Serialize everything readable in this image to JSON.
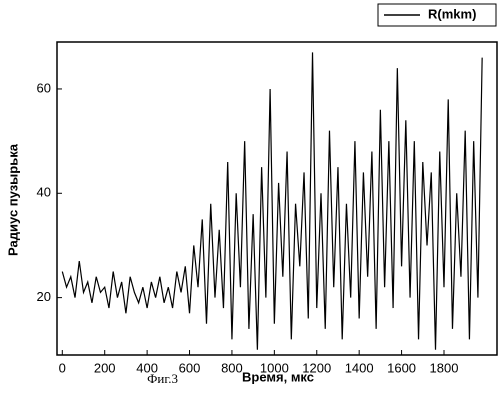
{
  "chart_data": {
    "type": "line",
    "caption": "Фиг.3",
    "xlabel": "Время, мкс",
    "ylabel": "Радиус пузырька",
    "x": [
      0,
      20,
      40,
      60,
      80,
      100,
      120,
      140,
      160,
      180,
      200,
      220,
      240,
      260,
      280,
      300,
      320,
      340,
      360,
      380,
      400,
      420,
      440,
      460,
      480,
      500,
      520,
      540,
      560,
      580,
      600,
      620,
      640,
      660,
      680,
      700,
      720,
      740,
      760,
      780,
      800,
      820,
      840,
      860,
      880,
      900,
      920,
      940,
      960,
      980,
      1000,
      1020,
      1040,
      1060,
      1080,
      1100,
      1120,
      1140,
      1160,
      1180,
      1200,
      1220,
      1240,
      1260,
      1280,
      1300,
      1320,
      1340,
      1360,
      1380,
      1400,
      1420,
      1440,
      1460,
      1480,
      1500,
      1520,
      1540,
      1560,
      1580,
      1600,
      1620,
      1640,
      1660,
      1680,
      1700,
      1720,
      1740,
      1760,
      1780,
      1800,
      1820,
      1840,
      1860,
      1880,
      1900,
      1920,
      1940,
      1960,
      1980
    ],
    "series": [
      {
        "name": "R(mkm)",
        "color": "#000000",
        "values": [
          25,
          22,
          24,
          20,
          27,
          21,
          23,
          19,
          24,
          21,
          22,
          18,
          25,
          20,
          23,
          17,
          24,
          21,
          19,
          22,
          18,
          23,
          20,
          24,
          19,
          22,
          18,
          25,
          21,
          26,
          17,
          30,
          22,
          35,
          15,
          38,
          20,
          33,
          18,
          46,
          12,
          40,
          22,
          50,
          14,
          36,
          10,
          45,
          20,
          60,
          15,
          42,
          24,
          48,
          12,
          38,
          26,
          44,
          16,
          67,
          18,
          40,
          14,
          52,
          22,
          45,
          12,
          38,
          20,
          50,
          16,
          44,
          24,
          48,
          14,
          56,
          22,
          50,
          18,
          64,
          26,
          54,
          20,
          50,
          12,
          46,
          30,
          44,
          10,
          48,
          22,
          58,
          14,
          40,
          24,
          52,
          12,
          50,
          20,
          66
        ]
      }
    ],
    "xlim": [
      -25,
      2050
    ],
    "ylim": [
      9,
      69
    ],
    "xticks": [
      0,
      200,
      400,
      600,
      800,
      1000,
      1200,
      1400,
      1600,
      1800
    ],
    "yticks": [
      20,
      40,
      60
    ]
  }
}
